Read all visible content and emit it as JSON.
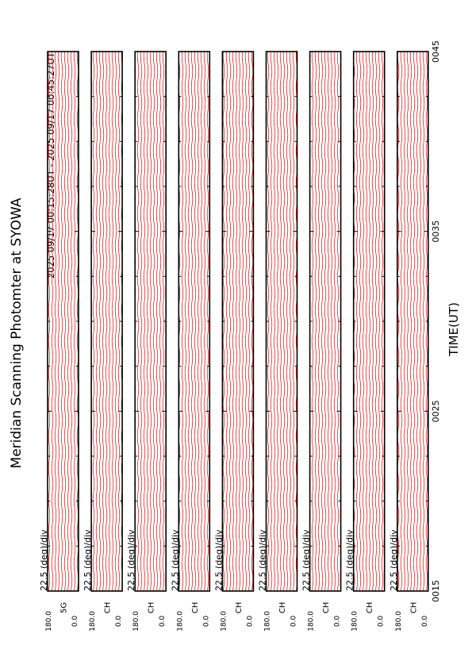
{
  "header": {
    "title": "Meridian Scanning Photomter at SYOWA",
    "subtitle": "2025 09/17 00:15:28UT - 2025 09/17 00:45:27UT"
  },
  "time_axis": {
    "label": "TIME(UT)",
    "ticks": [
      "0015",
      "0025",
      "0035",
      "0045"
    ]
  },
  "panels": [
    {
      "scale": "22.5 (deg)/div",
      "top": "180.0",
      "channel": "5G",
      "bottom": "0.0"
    },
    {
      "scale": "22.5 (deg)/div",
      "top": "180.0",
      "channel": "CH",
      "bottom": "0.0"
    },
    {
      "scale": "22.5 (deg)/div",
      "top": "180.0",
      "channel": "CH",
      "bottom": "0.0"
    },
    {
      "scale": "22.5 (deg)/div",
      "top": "180.0",
      "channel": "CH",
      "bottom": "0.0"
    },
    {
      "scale": "22.5 (deg)/div",
      "top": "180.0",
      "channel": "CH",
      "bottom": "0.0"
    },
    {
      "scale": "22.5 (deg)/div",
      "top": "180.0",
      "channel": "CH",
      "bottom": "0.0"
    },
    {
      "scale": "22.5 (deg)/div",
      "top": "180.0",
      "channel": "CH",
      "bottom": "0.0"
    },
    {
      "scale": "22.5 (deg)/div",
      "top": "180.0",
      "channel": "CH",
      "bottom": "0.0"
    },
    {
      "scale": "22.5 (deg)/div",
      "top": "180.0",
      "channel": "CH",
      "bottom": "0.0"
    }
  ]
}
